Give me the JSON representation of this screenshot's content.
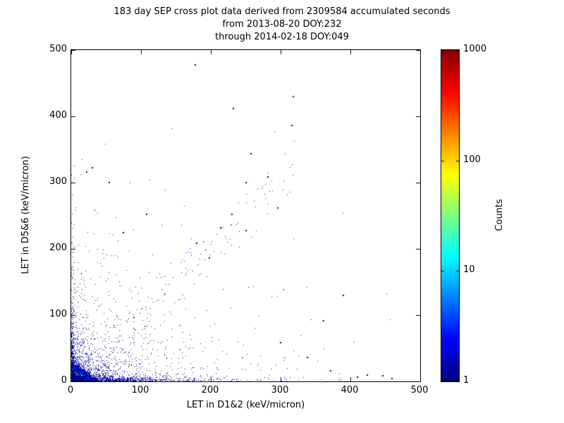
{
  "title_lines": [
    "183 day SEP cross plot data derived from 2309584 accumulated seconds",
    "from 2013-08-20 DOY:232",
    "through 2014-02-18 DOY:049"
  ],
  "chart_data": {
    "type": "scatter",
    "title": "183 day SEP cross plot data derived from 2309584 accumulated seconds from 2013-08-20 DOY:232 through 2014-02-18 DOY:049",
    "xlabel": "LET in D1&2 (keV/micron)",
    "ylabel": "LET in D5&6 (keV/micron)",
    "xlim": [
      0,
      500
    ],
    "ylim": [
      0,
      500
    ],
    "xticks": [
      0,
      100,
      200,
      300,
      400,
      500
    ],
    "yticks": [
      0,
      100,
      200,
      300,
      400,
      500
    ],
    "grid": false,
    "colorbar": {
      "label": "Counts",
      "scale": "log",
      "min": 1,
      "max": 1000,
      "ticks": [
        1,
        10,
        100,
        1000
      ],
      "colormap": "jet"
    },
    "point_color_single_count": "#00008f",
    "seed": 20130820,
    "components": [
      {
        "name": "hot-core",
        "type": "hist2d",
        "cell": 1.5,
        "x_max": 40,
        "y_max": 30,
        "x_decay": 5.5,
        "y_decay": 4.0,
        "peak": 1000
      },
      {
        "name": "x-axis-band",
        "type": "exp2d",
        "n": 1100,
        "x_scale": 60,
        "y_scale": 2.2,
        "x_clip": 470,
        "y_clip": 480
      },
      {
        "name": "y-axis-band",
        "type": "exp2d",
        "n": 420,
        "x_scale": 2.2,
        "y_scale": 55,
        "x_clip": 470,
        "y_clip": 335
      },
      {
        "name": "near-origin-cloud",
        "type": "exp2d",
        "n": 900,
        "x_scale": 18,
        "y_scale": 14,
        "x_clip": 470,
        "y_clip": 480
      },
      {
        "name": "diffuse-lowerleft",
        "type": "exp2d",
        "n": 650,
        "x_scale": 60,
        "y_scale": 45,
        "x_clip": 470,
        "y_clip": 480
      },
      {
        "name": "mid-sparse",
        "type": "exp2d",
        "n": 230,
        "x_scale": 120,
        "y_scale": 85,
        "x_clip": 460,
        "y_clip": 480
      },
      {
        "name": "diagonal-band",
        "type": "diag",
        "n": 110,
        "x_min": 50,
        "x_max": 320,
        "slope": 1.0,
        "noise": 30
      }
    ],
    "outlier_points": [
      [
        178,
        478
      ],
      [
        318,
        430
      ],
      [
        232,
        412
      ],
      [
        316,
        386
      ],
      [
        258,
        344
      ],
      [
        282,
        308
      ],
      [
        250,
        300
      ],
      [
        296,
        262
      ],
      [
        230,
        252
      ],
      [
        214,
        232
      ],
      [
        250,
        228
      ],
      [
        180,
        208
      ],
      [
        198,
        186
      ],
      [
        30,
        322
      ],
      [
        22,
        316
      ],
      [
        55,
        300
      ],
      [
        108,
        252
      ],
      [
        75,
        225
      ],
      [
        372,
        16
      ],
      [
        300,
        58
      ],
      [
        338,
        36
      ],
      [
        424,
        10
      ],
      [
        446,
        8
      ],
      [
        390,
        130
      ],
      [
        362,
        92
      ],
      [
        410,
        6
      ],
      [
        460,
        4
      ]
    ]
  }
}
